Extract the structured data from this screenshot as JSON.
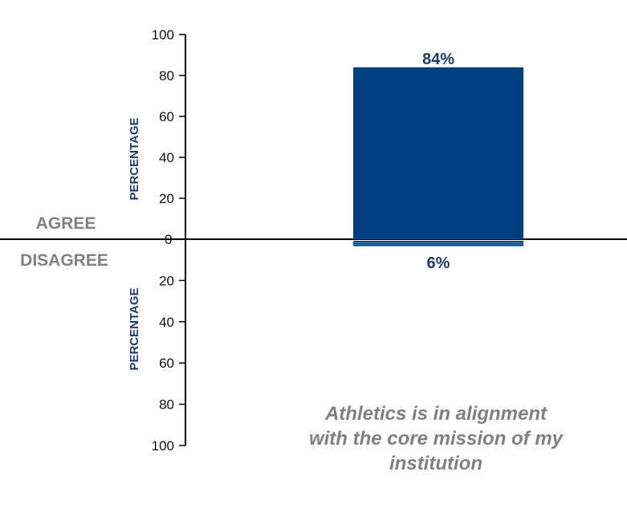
{
  "chart_data": {
    "type": "bar",
    "categories": [
      "Athletics is in alignment with the core mission of my institution"
    ],
    "series": [
      {
        "name": "AGREE",
        "values": [
          84
        ],
        "label": "84%"
      },
      {
        "name": "DISAGREE",
        "values": [
          6
        ],
        "label": "6%"
      }
    ],
    "ylabel_top": "PERCENTAGE",
    "ylabel_bottom": "PERCENTAGE",
    "ylim_top": [
      0,
      100
    ],
    "ylim_bottom": [
      0,
      100
    ],
    "ticks_top": [
      "100",
      "80",
      "60",
      "40",
      "20",
      "0"
    ],
    "ticks_bottom": [
      "20",
      "40",
      "60",
      "80",
      "100"
    ],
    "caption": "Athletics is in alignment with the core mission of my institution",
    "colors": {
      "bar": "#004080",
      "label": "#1f3a6e",
      "axis_title": "#1f3a6e",
      "side_label": "#808080",
      "caption": "#808080"
    }
  }
}
